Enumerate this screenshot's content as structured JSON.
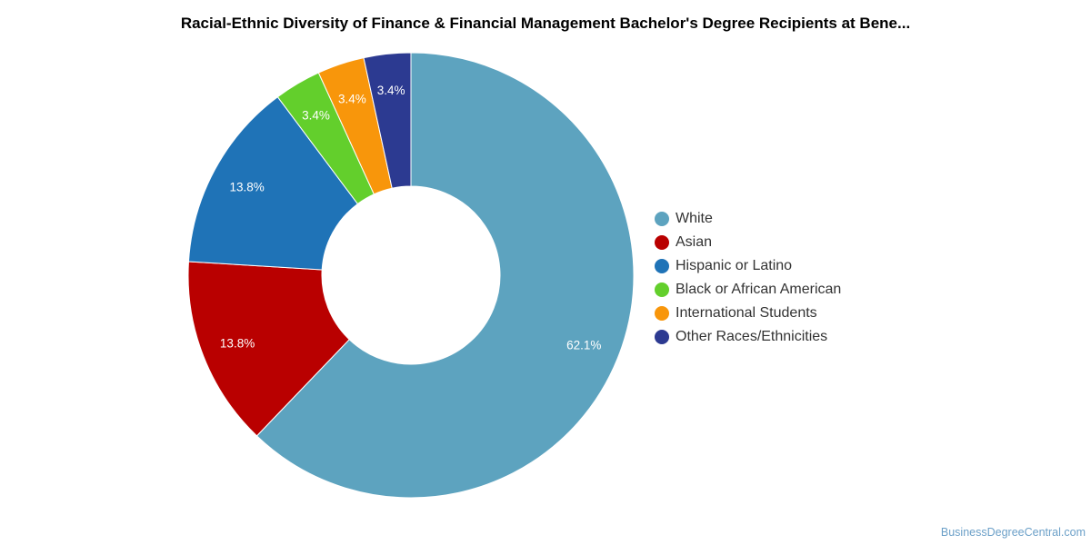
{
  "chart_data": {
    "type": "pie",
    "variant": "donut",
    "title": "Racial-Ethnic Diversity of Finance & Financial Management Bachelor's Degree Recipients at Bene...",
    "legend_position": "right",
    "slices": [
      {
        "label": "White",
        "value": 62.1,
        "display": "62.1%",
        "color": "#5da3bf"
      },
      {
        "label": "Asian",
        "value": 13.8,
        "display": "13.8%",
        "color": "#b90000"
      },
      {
        "label": "Hispanic or Latino",
        "value": 13.8,
        "display": "13.8%",
        "color": "#1f73b7"
      },
      {
        "label": "Black or African American",
        "value": 3.4,
        "display": "3.4%",
        "color": "#63cf2c"
      },
      {
        "label": "International Students",
        "value": 3.4,
        "display": "3.4%",
        "color": "#f8960b"
      },
      {
        "label": "Other Races/Ethnicities",
        "value": 3.4,
        "display": "3.4%",
        "color": "#2c3a91"
      }
    ]
  },
  "watermark": "BusinessDegreeCentral.com"
}
